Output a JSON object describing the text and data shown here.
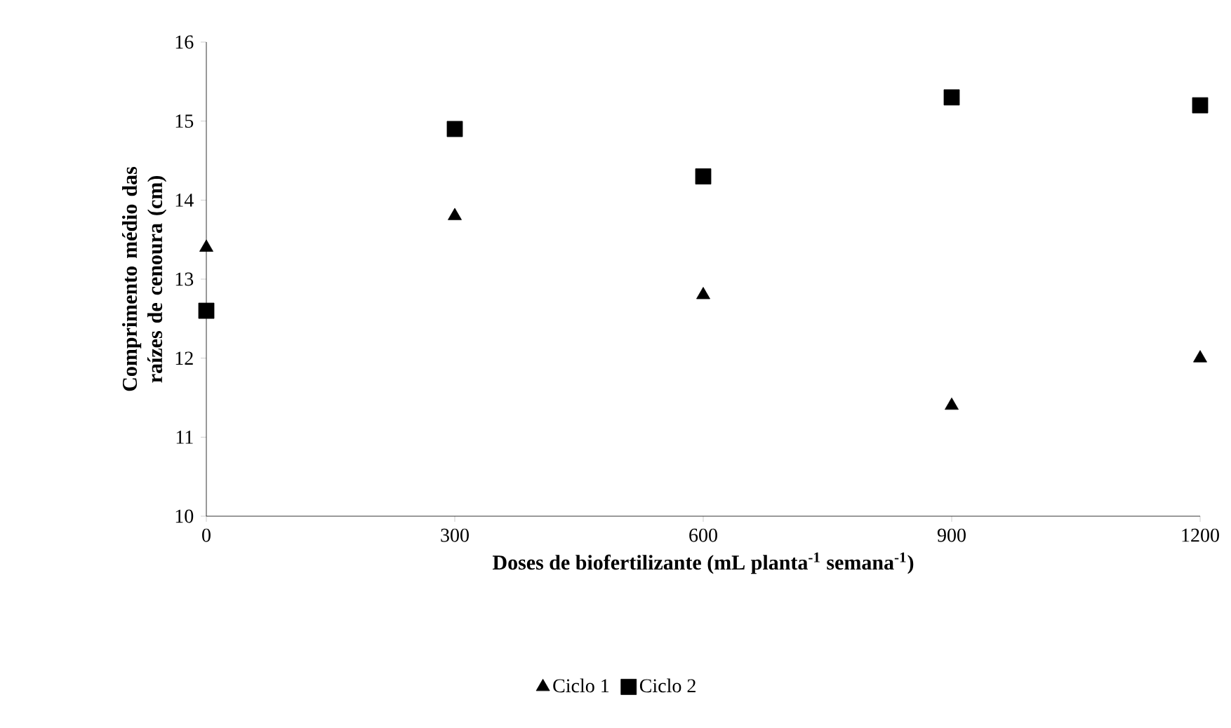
{
  "chart_data": {
    "type": "scatter",
    "xlabel": "Doses de biofertilizante (mL planta$^{-1}$ semana$^{-1}$)",
    "ylabel": "Comprimento médio das raízes de cenoura (cm)",
    "x": [
      0,
      300,
      600,
      900,
      1200
    ],
    "series": [
      {
        "name": "Ciclo 1",
        "color": "#000000",
        "marker": "triangle",
        "values": [
          13.4,
          13.8,
          12.8,
          11.4,
          12.0
        ]
      },
      {
        "name": "Ciclo 2",
        "color": "#000000",
        "marker": "square",
        "values": [
          12.6,
          14.9,
          14.3,
          15.3,
          15.2
        ]
      }
    ],
    "xlim": [
      0,
      1200
    ],
    "xticks": [
      0,
      300,
      600,
      900,
      1200
    ],
    "ylim": [
      10,
      16
    ],
    "yticks": [
      10,
      11,
      12,
      13,
      14,
      15,
      16
    ],
    "grid": false,
    "legend": "bottom"
  }
}
